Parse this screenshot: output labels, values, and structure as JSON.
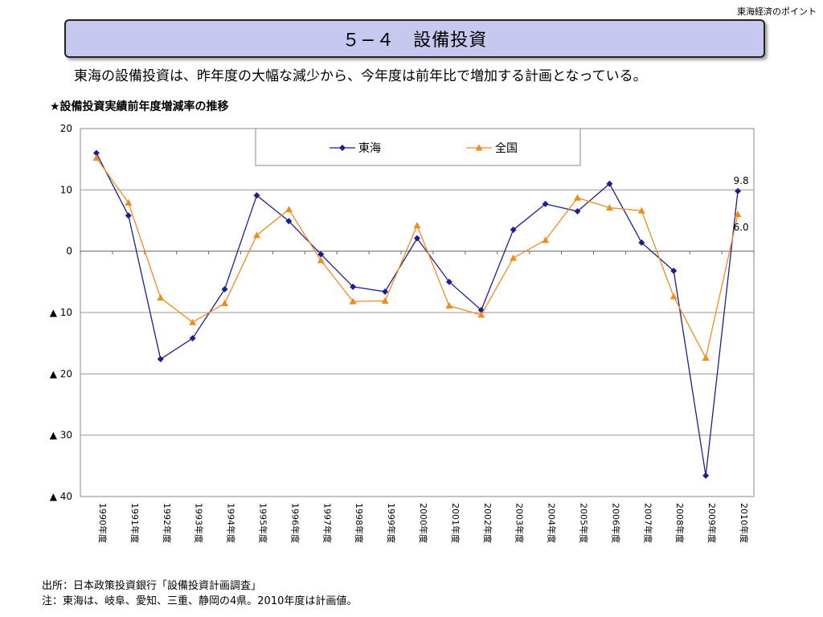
{
  "header": {
    "note": "東海経済のポイント"
  },
  "slide_title": "５−４　設備投資",
  "subtitle": "東海の設備投資は、昨年度の大幅な減少から、今年度は前年比で増加する計画となっている。",
  "chart_heading": "★設備投資実績前年度増減率の推移",
  "footer": {
    "source": "出所：日本政策投資銀行「設備投資計画調査」",
    "note": "注：東海は、岐阜、愛知、三重、静岡の4県。2010年度は計画値。"
  },
  "chart_data": {
    "type": "line",
    "title": "",
    "xlabel": "",
    "ylabel": "",
    "categories": [
      "1990年度",
      "1991年度",
      "1992年度",
      "1993年度",
      "1994年度",
      "1995年度",
      "1996年度",
      "1997年度",
      "1998年度",
      "1999年度",
      "2000年度",
      "2001年度",
      "2002年度",
      "2003年度",
      "2004年度",
      "2005年度",
      "2006年度",
      "2007年度",
      "2008年度",
      "2009年度",
      "2010年度"
    ],
    "ylim": [
      -40,
      20
    ],
    "yticks": [
      20,
      10,
      0,
      -10,
      -20,
      -30,
      -40
    ],
    "ytick_labels": [
      "20",
      "10",
      "0",
      "▲ 10",
      "▲ 20",
      "▲ 30",
      "▲ 40"
    ],
    "grid": true,
    "legend_position": "top",
    "series": [
      {
        "name": "東海",
        "color": "#1f1f8a",
        "marker": "diamond",
        "values": [
          16.0,
          5.8,
          -17.6,
          -14.2,
          -6.2,
          9.1,
          4.9,
          -0.5,
          -5.8,
          -6.6,
          2.1,
          -5.0,
          -9.6,
          3.5,
          7.7,
          6.5,
          11.0,
          1.4,
          -3.2,
          -36.6,
          9.8
        ]
      },
      {
        "name": "全国",
        "color": "#f08c1e",
        "marker": "triangle",
        "values": [
          15.2,
          7.9,
          -7.6,
          -11.6,
          -8.5,
          2.6,
          6.8,
          -1.5,
          -8.2,
          -8.1,
          4.2,
          -8.9,
          -10.4,
          -1.1,
          1.8,
          8.7,
          7.1,
          6.6,
          -7.4,
          -17.4,
          6.0
        ]
      }
    ],
    "annotations": [
      {
        "series": "東海",
        "category": "2010年度",
        "text": "9.8"
      },
      {
        "series": "全国",
        "category": "2010年度",
        "text": "6.0"
      }
    ]
  }
}
